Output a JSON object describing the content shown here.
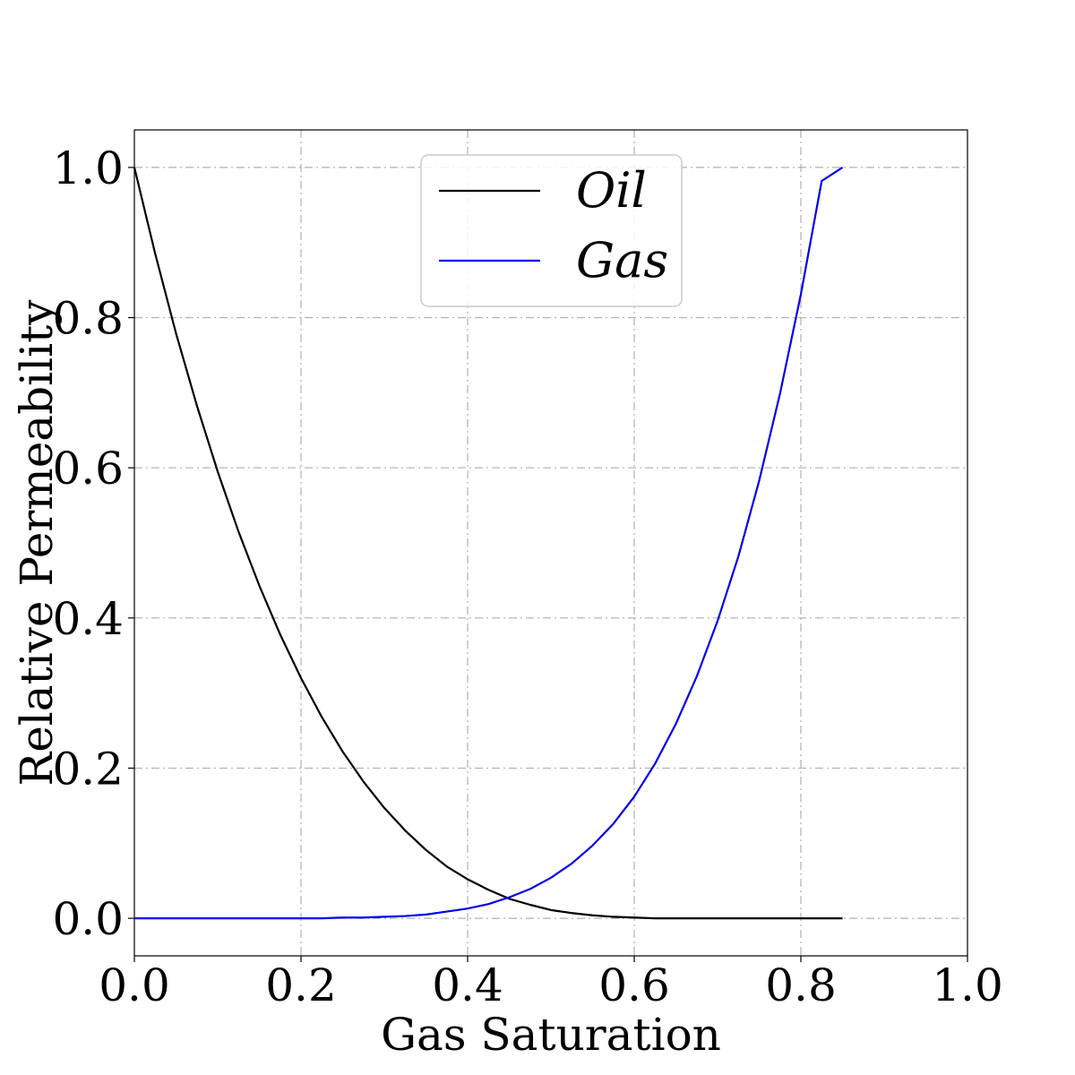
{
  "chart_data": {
    "type": "line",
    "title": "",
    "xlabel": "Gas Saturation",
    "ylabel": "Relative Permeability",
    "xlim": [
      0.0,
      1.0
    ],
    "ylim": [
      -0.05,
      1.05
    ],
    "xticks": [
      0.0,
      0.2,
      0.4,
      0.6,
      0.8,
      1.0
    ],
    "xtick_labels": [
      "0.0",
      "0.2",
      "0.4",
      "0.6",
      "0.8",
      "1.0"
    ],
    "yticks": [
      0.0,
      0.2,
      0.4,
      0.6,
      0.8,
      1.0
    ],
    "ytick_labels": [
      "0.0",
      "0.2",
      "0.4",
      "0.6",
      "0.8",
      "1.0"
    ],
    "grid": true,
    "legend_position": "top-center",
    "series": [
      {
        "name": "Oil",
        "color": "#000000",
        "x": [
          0.0,
          0.025,
          0.05,
          0.075,
          0.1,
          0.125,
          0.15,
          0.175,
          0.2,
          0.225,
          0.25,
          0.275,
          0.3,
          0.325,
          0.35,
          0.375,
          0.4,
          0.425,
          0.45,
          0.475,
          0.5,
          0.525,
          0.55,
          0.575,
          0.6,
          0.625,
          0.65,
          0.675,
          0.7,
          0.725,
          0.75,
          0.775,
          0.8,
          0.825,
          0.85
        ],
        "y": [
          1.0,
          0.885,
          0.779,
          0.683,
          0.595,
          0.515,
          0.443,
          0.378,
          0.32,
          0.268,
          0.222,
          0.182,
          0.147,
          0.117,
          0.091,
          0.069,
          0.052,
          0.038,
          0.026,
          0.018,
          0.011,
          0.007,
          0.004,
          0.002,
          0.001,
          0.0,
          0.0,
          0.0,
          0.0,
          0.0,
          0.0,
          0.0,
          0.0,
          0.0,
          0.0
        ]
      },
      {
        "name": "Gas",
        "color": "#0000ee",
        "x": [
          0.0,
          0.025,
          0.05,
          0.075,
          0.1,
          0.125,
          0.15,
          0.175,
          0.2,
          0.225,
          0.25,
          0.275,
          0.3,
          0.325,
          0.35,
          0.375,
          0.4,
          0.425,
          0.45,
          0.475,
          0.5,
          0.525,
          0.55,
          0.575,
          0.6,
          0.625,
          0.65,
          0.675,
          0.7,
          0.725,
          0.75,
          0.775,
          0.8,
          0.825,
          0.85
        ],
        "y": [
          0.0,
          0.0,
          0.0,
          0.0,
          0.0,
          0.0,
          0.0,
          0.0,
          0.0,
          0.0,
          0.001,
          0.001,
          0.002,
          0.003,
          0.005,
          0.009,
          0.013,
          0.019,
          0.028,
          0.039,
          0.054,
          0.073,
          0.097,
          0.126,
          0.162,
          0.206,
          0.259,
          0.322,
          0.396,
          0.482,
          0.583,
          0.699,
          0.831,
          0.982,
          1.0
        ]
      }
    ]
  }
}
